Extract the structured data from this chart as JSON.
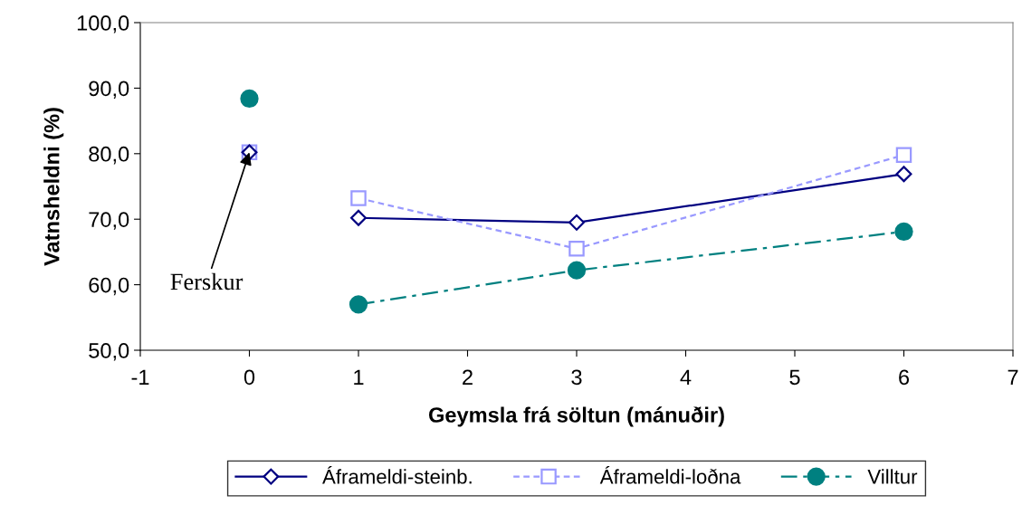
{
  "chart_data": {
    "type": "line",
    "xlabel": "Geymsla frá söltun (mánuðir)",
    "ylabel": "Vatnsheldni (%)",
    "xlim": [
      -1,
      7
    ],
    "xticks": [
      -1,
      0,
      1,
      2,
      3,
      4,
      5,
      6,
      7
    ],
    "ylim": [
      50,
      100
    ],
    "yticks": [
      {
        "value": 50,
        "label": "50,0"
      },
      {
        "value": 60,
        "label": "60,0"
      },
      {
        "value": 70,
        "label": "70,0"
      },
      {
        "value": 80,
        "label": "80,0"
      },
      {
        "value": 90,
        "label": "90,0"
      },
      {
        "value": 100,
        "label": "100,0"
      }
    ],
    "grid": false,
    "legend": "bottom",
    "series": [
      {
        "name": "Áframeldi-steinb.",
        "color": "#000080",
        "x": [
          1,
          3,
          6
        ],
        "values": [
          70.2,
          69.5,
          76.9
        ],
        "marker": "diamond",
        "line_style": "solid"
      },
      {
        "name": "Áframeldi-loðna",
        "color": "#9999ff",
        "x": [
          1,
          3,
          6
        ],
        "values": [
          73.2,
          65.5,
          79.8
        ],
        "marker": "square",
        "line_style": "dashed"
      },
      {
        "name": "Villtur",
        "color": "#008080",
        "x": [
          1,
          3,
          6
        ],
        "values": [
          57.0,
          62.2,
          68.1
        ],
        "marker": "circle",
        "line_style": "dashdot"
      },
      {
        "type": "scatter",
        "color": "#9999ff",
        "x": [
          0
        ],
        "values": [
          80.2
        ],
        "marker": "square"
      },
      {
        "type": "scatter",
        "color": "#000080",
        "x": [
          0
        ],
        "values": [
          80.2
        ],
        "marker": "diamond"
      },
      {
        "type": "scatter",
        "color": "#008080",
        "x": [
          0
        ],
        "values": [
          88.4
        ],
        "marker": "circle"
      }
    ],
    "annotations": [
      {
        "text": "Ferskur",
        "x": 0,
        "y": 80.2
      }
    ]
  }
}
